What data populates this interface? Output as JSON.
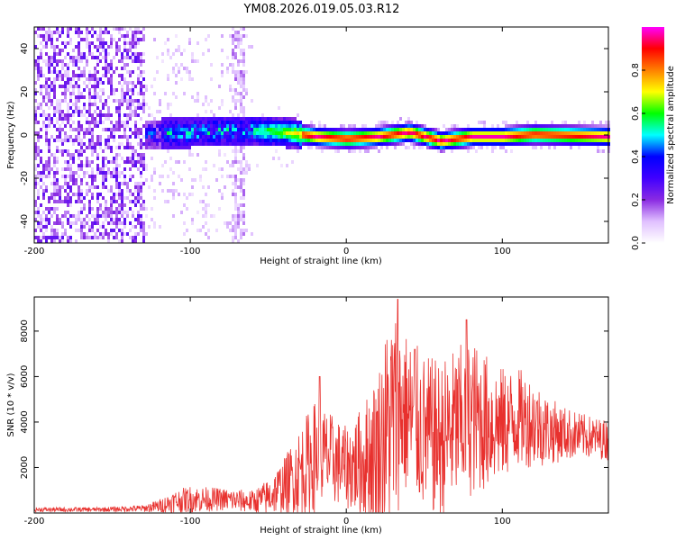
{
  "title": "YM08.2026.019.05.03.R12",
  "chart_data": [
    {
      "type": "heatmap",
      "name": "spectrogram",
      "xlabel": "Height of straight line (km)",
      "ylabel": "Frequency (Hz)",
      "xlim": [
        -200,
        168
      ],
      "ylim": [
        -50,
        50
      ],
      "x_ticks": [
        -200,
        -100,
        0,
        100
      ],
      "x_tick_labels": [
        "-200",
        "-100",
        "0",
        "100"
      ],
      "y_ticks": [
        -40,
        -20,
        0,
        20,
        40
      ],
      "y_tick_labels": [
        "-40",
        "-20",
        "0",
        "20",
        "40"
      ],
      "colorbar": {
        "label": "Normalized spectral amplitude",
        "range": [
          0,
          1
        ],
        "ticks": [
          0.0,
          0.2,
          0.4,
          0.6,
          0.8
        ],
        "tick_labels": [
          "0.0",
          "0.2",
          "0.4",
          "0.6",
          "0.8"
        ],
        "colormap": [
          "#ffffff",
          "#e0c0ff",
          "#8a2be2",
          "#4000ff",
          "#0000ff",
          "#00ffff",
          "#00ff00",
          "#ffff00",
          "#ff8000",
          "#ff0000",
          "#ff00ff"
        ]
      },
      "ridge": {
        "description_values": "peak-frequency track (km, Hz)",
        "x": [
          -130,
          -100,
          -70,
          -40,
          -20,
          0,
          20,
          40,
          60,
          80,
          100,
          120,
          168
        ],
        "y": [
          1,
          2,
          3,
          2,
          0,
          -1,
          0,
          2,
          -2,
          0,
          0,
          1,
          0
        ]
      }
    },
    {
      "type": "line",
      "name": "snr",
      "xlabel": "Height of straight line (km)",
      "ylabel": "SNR (10 * v/v)",
      "xlim": [
        -200,
        168
      ],
      "ylim": [
        0,
        9500
      ],
      "x_ticks": [
        -200,
        -100,
        0,
        100
      ],
      "x_tick_labels": [
        "-200",
        "-100",
        "0",
        "100"
      ],
      "y_ticks": [
        2000,
        4000,
        6000,
        8000
      ],
      "y_tick_labels": [
        "2000",
        "4000",
        "6000",
        "8000"
      ],
      "color": "#e8312e",
      "envelope": {
        "x": [
          -200,
          -160,
          -130,
          -120,
          -110,
          -100,
          -80,
          -60,
          -50,
          -40,
          -30,
          -20,
          -10,
          0,
          10,
          20,
          25,
          30,
          35,
          40,
          50,
          60,
          70,
          80,
          90,
          100,
          110,
          120,
          130,
          140,
          150,
          160,
          168
        ],
        "mean": [
          150,
          150,
          200,
          300,
          500,
          600,
          600,
          500,
          700,
          1200,
          1800,
          2500,
          2400,
          2000,
          2200,
          2800,
          3500,
          4200,
          4500,
          4300,
          3500,
          3200,
          3800,
          4200,
          4000,
          3900,
          4200,
          4000,
          3600,
          3500,
          3400,
          3300,
          3200
        ],
        "amplitude": [
          100,
          100,
          150,
          300,
          500,
          600,
          500,
          500,
          800,
          1200,
          2000,
          2500,
          2000,
          1800,
          2500,
          3500,
          4500,
          5000,
          4000,
          3500,
          3500,
          3500,
          3500,
          3500,
          3000,
          2500,
          2200,
          2000,
          1500,
          1200,
          1000,
          900,
          900
        ]
      },
      "peaks": [
        {
          "x": 33,
          "y": 9400
        },
        {
          "x": 77,
          "y": 8500
        },
        {
          "x": -17,
          "y": 6000
        },
        {
          "x": 44,
          "y": 7200
        }
      ]
    }
  ]
}
